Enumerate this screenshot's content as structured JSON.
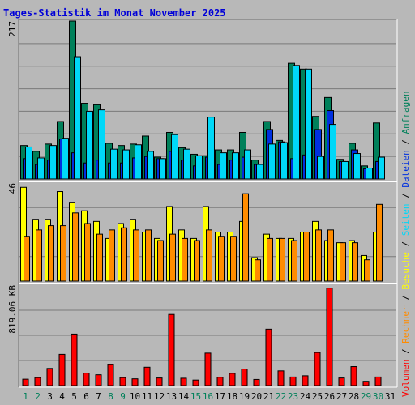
{
  "chart_data": {
    "type": "bar",
    "title": "Tages-Statistik im Monat November 2025",
    "days": [
      "1",
      "2",
      "3",
      "4",
      "5",
      "6",
      "7",
      "8",
      "9",
      "10",
      "11",
      "12",
      "13",
      "14",
      "15",
      "16",
      "17",
      "18",
      "19",
      "20",
      "21",
      "22",
      "23",
      "24",
      "25",
      "26",
      "27",
      "28",
      "29",
      "30",
      "31"
    ],
    "weekend_days": [
      "1",
      "2",
      "8",
      "9",
      "15",
      "16",
      "22",
      "23",
      "29",
      "30"
    ],
    "panels": [
      {
        "name": "requests",
        "max_label": "217",
        "ymax": 217,
        "series": [
          {
            "name": "Anfragen",
            "color": "#00805a",
            "values": [
              46,
              38,
              48,
              79,
              217,
              104,
              102,
              49,
              46,
              48,
              59,
              30,
              64,
              43,
              34,
              32,
              40,
              40,
              64,
              26,
              79,
              53,
              159,
              151,
              86,
              112,
              27,
              49,
              18,
              77,
              0
            ]
          },
          {
            "name": "Dateien",
            "color": "#0030e0",
            "values": [
              28,
              20,
              26,
              55,
              36,
              22,
              26,
              22,
              22,
              29,
              31,
              28,
              38,
              26,
              18,
              30,
              20,
              26,
              30,
              20,
              68,
              51,
              28,
              33,
              68,
              94,
              24,
              40,
              14,
              24,
              0
            ]
          },
          {
            "name": "Seiten",
            "color": "#00d8f8",
            "values": [
              44,
              29,
              46,
              56,
              168,
              93,
              95,
              41,
              40,
              47,
              38,
              28,
              61,
              41,
              32,
              85,
              36,
              36,
              40,
              20,
              48,
              50,
              156,
              151,
              31,
              75,
              24,
              35,
              15,
              30,
              0
            ]
          }
        ]
      },
      {
        "name": "visits",
        "max_label": "46",
        "ymax": 46,
        "series": [
          {
            "name": "Besuche",
            "color": "#ffff00",
            "values": [
              44,
              29,
              29,
              42,
              37,
              33,
              28,
              20,
              27,
              29,
              23,
              20,
              35,
              24,
              20,
              35,
              23,
              23,
              28,
              11,
              22,
              20,
              20,
              23,
              28,
              19,
              18,
              19,
              12,
              23,
              0
            ]
          },
          {
            "name": "Rechner",
            "color": "#ff8c00",
            "values": [
              21,
              24,
              26,
              26,
              32,
              27,
              22,
              24,
              25,
              24,
              24,
              19,
              22,
              20,
              19,
              24,
              21,
              21,
              41,
              10,
              20,
              20,
              19,
              23,
              24,
              24,
              18,
              18,
              10,
              36,
              0
            ]
          }
        ]
      },
      {
        "name": "volume",
        "max_label": "819.06 KB",
        "ymax": 819.06,
        "series": [
          {
            "name": "Volumen",
            "color": "#ff0000",
            "values": [
              52,
              65,
              140,
              255,
              420,
              102,
              88,
              170,
              65,
              55,
              150,
              62,
              580,
              60,
              45,
              265,
              68,
              100,
              135,
              50,
              460,
              120,
              70,
              80,
              270,
              795,
              62,
              155,
              35,
              70,
              0
            ]
          }
        ]
      }
    ],
    "legend": [
      {
        "name": "Volumen",
        "color": "#ff0000"
      },
      {
        "name": "Rechner",
        "color": "#ff8c00"
      },
      {
        "name": "Besuche",
        "color": "#ffff00"
      },
      {
        "name": "Seiten",
        "color": "#00d8f8"
      },
      {
        "name": "Dateien",
        "color": "#0030e0"
      },
      {
        "name": "Anfragen",
        "color": "#00805a"
      }
    ],
    "legend_separator": " / ",
    "xlabel": "",
    "grid": true
  }
}
